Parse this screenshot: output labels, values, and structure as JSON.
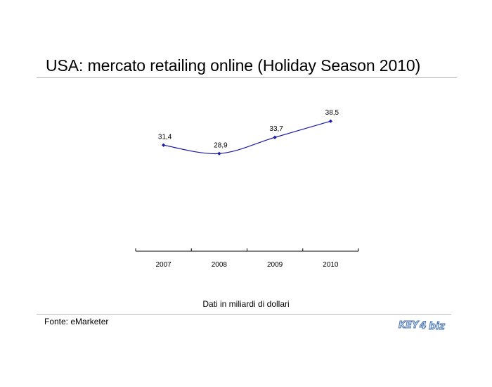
{
  "slide": {
    "title": "USA: mercato retailing online (Holiday Season 2010)",
    "caption": "Dati in miliardi di dollari",
    "source": "Fonte: eMarketer"
  },
  "logo": {
    "part1": "KEY",
    "part2": "4",
    "part3": "biz",
    "color_primary": "#3a6fb6",
    "color_accent": "#e0e0e0"
  },
  "chart_data": {
    "type": "line",
    "categories": [
      "2007",
      "2008",
      "2009",
      "2010"
    ],
    "series": [
      {
        "values": [
          31.4,
          28.9,
          33.7,
          38.5
        ],
        "labels": [
          "31,4",
          "28,9",
          "33,7",
          "38,5"
        ],
        "color": "#1a1aa8"
      }
    ],
    "title": "",
    "xlabel": "",
    "ylabel": "",
    "ylim": [
      0,
      45
    ],
    "grid": false,
    "legend": "none"
  }
}
